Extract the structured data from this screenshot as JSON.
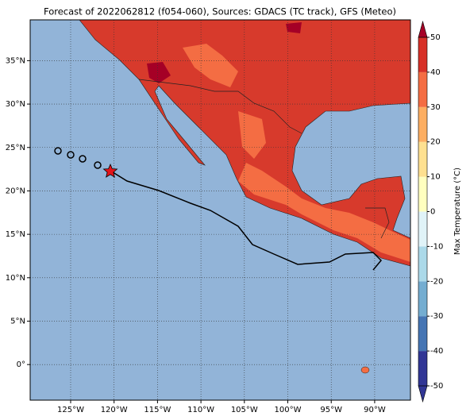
{
  "title": "Forecast of 2022062812 (f054-060), Sources: GDACS (TC track), GFS (Meteo)",
  "map": {
    "lonlim": [
      -129.66,
      -85.88
    ],
    "latlim": [
      -4.1,
      39.7
    ],
    "grid": true,
    "lon_ticks": [
      {
        "value": -125,
        "label": "125°W"
      },
      {
        "value": -120,
        "label": "120°W"
      },
      {
        "value": -115,
        "label": "115°W"
      },
      {
        "value": -110,
        "label": "110°W"
      },
      {
        "value": -105,
        "label": "105°W"
      },
      {
        "value": -100,
        "label": "100°W"
      },
      {
        "value": -95,
        "label": "95°W"
      },
      {
        "value": -90,
        "label": "90°W"
      }
    ],
    "lat_ticks": [
      {
        "value": 0,
        "label": "0°"
      },
      {
        "value": 5,
        "label": "5°N"
      },
      {
        "value": 10,
        "label": "10°N"
      },
      {
        "value": 15,
        "label": "15°N"
      },
      {
        "value": 20,
        "label": "20°N"
      },
      {
        "value": 25,
        "label": "25°N"
      },
      {
        "value": 30,
        "label": "30°N"
      },
      {
        "value": 35,
        "label": "35°N"
      }
    ]
  },
  "colorbar": {
    "label": "Max Temperature (°C)",
    "lim": [
      -50,
      50
    ],
    "ticks": [
      -50,
      -40,
      -30,
      -20,
      -10,
      0,
      10,
      20,
      30,
      40,
      50
    ],
    "colors": [
      "#313695",
      "#4575b4",
      "#74add1",
      "#abd9e9",
      "#e0f3f8",
      "#ffffbf",
      "#fee090",
      "#fdae61",
      "#f46d43",
      "#d73027",
      "#a50026"
    ]
  }
}
